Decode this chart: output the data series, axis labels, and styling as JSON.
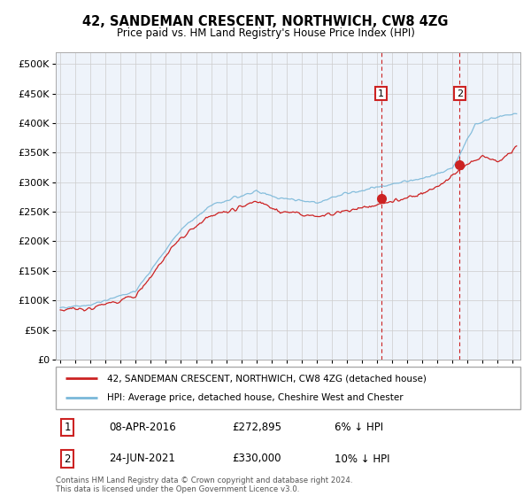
{
  "title": "42, SANDEMAN CRESCENT, NORTHWICH, CW8 4ZG",
  "subtitle": "Price paid vs. HM Land Registry's House Price Index (HPI)",
  "ytick_values": [
    0,
    50000,
    100000,
    150000,
    200000,
    250000,
    300000,
    350000,
    400000,
    450000,
    500000
  ],
  "ylim": [
    0,
    520000
  ],
  "xlim_start": 1994.7,
  "xlim_end": 2025.5,
  "sale1_x": 2016.27,
  "sale1_y": 272895,
  "sale2_x": 2021.48,
  "sale2_y": 330000,
  "legend_line1": "42, SANDEMAN CRESCENT, NORTHWICH, CW8 4ZG (detached house)",
  "legend_line2": "HPI: Average price, detached house, Cheshire West and Chester",
  "table_row1": [
    "1",
    "08-APR-2016",
    "£272,895",
    "6% ↓ HPI"
  ],
  "table_row2": [
    "2",
    "24-JUN-2021",
    "£330,000",
    "10% ↓ HPI"
  ],
  "footer": "Contains HM Land Registry data © Crown copyright and database right 2024.\nThis data is licensed under the Open Government Licence v3.0.",
  "hpi_color": "#7ab8d9",
  "sale_color": "#cc2222",
  "vline_color": "#cc2222",
  "bg_color": "#ffffff",
  "grid_color": "#cccccc",
  "box_color": "#cc2222",
  "chart_bg": "#eef3fa"
}
